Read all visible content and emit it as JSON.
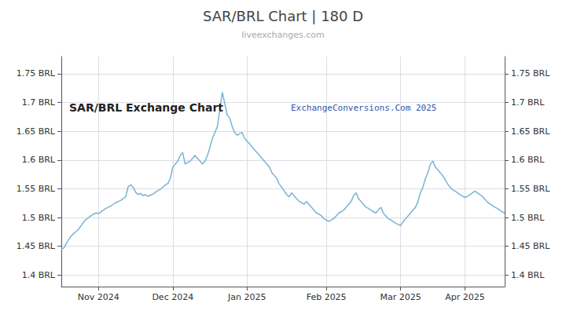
{
  "chart_data": {
    "type": "line",
    "title": "SAR/BRL Chart | 180 D",
    "subtitle": "liveexchanges.com",
    "annotations": [
      "SAR/BRL Exchange Chart",
      "ExchangeConversions.Com 2025"
    ],
    "color": "#7ab3d4",
    "grid": true,
    "xlim": [
      0,
      179
    ],
    "xticks": [
      {
        "value": 15,
        "label": "Nov 2024"
      },
      {
        "value": 45,
        "label": "Dec 2024"
      },
      {
        "value": 75,
        "label": "Jan 2025"
      },
      {
        "value": 107,
        "label": "Feb 2025"
      },
      {
        "value": 137,
        "label": "Mar 2025"
      },
      {
        "value": 163,
        "label": "Apr 2025"
      }
    ],
    "ylim": [
      1.38,
      1.78
    ],
    "yticks": [
      {
        "value": 1.4,
        "label": "1.4 BRL"
      },
      {
        "value": 1.45,
        "label": "1.45 BRL"
      },
      {
        "value": 1.5,
        "label": "1.5 BRL"
      },
      {
        "value": 1.55,
        "label": "1.55 BRL"
      },
      {
        "value": 1.6,
        "label": "1.6 BRL"
      },
      {
        "value": 1.65,
        "label": "1.65 BRL"
      },
      {
        "value": 1.7,
        "label": "1.7 BRL"
      },
      {
        "value": 1.75,
        "label": "1.75 BRL"
      }
    ],
    "y2lim": [
      1.38,
      1.78
    ],
    "y2ticks": [
      {
        "value": 1.4,
        "label": "1.4 BRL"
      },
      {
        "value": 1.45,
        "label": "1.45 BRL"
      },
      {
        "value": 1.5,
        "label": "1.5 BRL"
      },
      {
        "value": 1.55,
        "label": "1.55 BRL"
      },
      {
        "value": 1.6,
        "label": "1.6 BRL"
      },
      {
        "value": 1.65,
        "label": "1.65 BRL"
      },
      {
        "value": 1.7,
        "label": "1.7 BRL"
      },
      {
        "value": 1.75,
        "label": "1.75 BRL"
      }
    ],
    "x": [
      0,
      1,
      2,
      3,
      4,
      5,
      6,
      7,
      8,
      9,
      10,
      11,
      12,
      13,
      14,
      15,
      16,
      17,
      18,
      19,
      20,
      21,
      22,
      23,
      24,
      25,
      26,
      27,
      28,
      29,
      30,
      31,
      32,
      33,
      34,
      35,
      36,
      37,
      38,
      39,
      40,
      41,
      42,
      43,
      44,
      45,
      46,
      47,
      48,
      49,
      50,
      51,
      52,
      53,
      54,
      55,
      56,
      57,
      58,
      59,
      60,
      61,
      62,
      63,
      64,
      65,
      66,
      67,
      68,
      69,
      70,
      71,
      72,
      73,
      74,
      75,
      76,
      77,
      78,
      79,
      80,
      81,
      82,
      83,
      84,
      85,
      86,
      87,
      88,
      89,
      90,
      91,
      92,
      93,
      94,
      95,
      96,
      97,
      98,
      99,
      100,
      101,
      102,
      103,
      104,
      105,
      106,
      107,
      108,
      109,
      110,
      111,
      112,
      113,
      114,
      115,
      116,
      117,
      118,
      119,
      120,
      121,
      122,
      123,
      124,
      125,
      126,
      127,
      128,
      129,
      130,
      131,
      132,
      133,
      134,
      135,
      136,
      137,
      138,
      139,
      140,
      141,
      142,
      143,
      144,
      145,
      146,
      147,
      148,
      149,
      150,
      151,
      152,
      153,
      154,
      155,
      156,
      157,
      158,
      159,
      160,
      161,
      162,
      163,
      164,
      165,
      166,
      167,
      168,
      169,
      170,
      171,
      172,
      173,
      174,
      175,
      176,
      177,
      178,
      179
    ],
    "values": [
      1.445,
      1.447,
      1.455,
      1.462,
      1.468,
      1.472,
      1.476,
      1.48,
      1.486,
      1.492,
      1.497,
      1.5,
      1.503,
      1.506,
      1.508,
      1.507,
      1.51,
      1.513,
      1.516,
      1.518,
      1.52,
      1.523,
      1.526,
      1.528,
      1.53,
      1.533,
      1.536,
      1.554,
      1.557,
      1.553,
      1.544,
      1.54,
      1.542,
      1.538,
      1.54,
      1.537,
      1.539,
      1.541,
      1.544,
      1.547,
      1.549,
      1.553,
      1.557,
      1.559,
      1.568,
      1.588,
      1.593,
      1.598,
      1.608,
      1.613,
      1.593,
      1.596,
      1.598,
      1.603,
      1.608,
      1.603,
      1.598,
      1.593,
      1.598,
      1.608,
      1.622,
      1.638,
      1.648,
      1.658,
      1.688,
      1.718,
      1.698,
      1.678,
      1.673,
      1.658,
      1.648,
      1.643,
      1.646,
      1.648,
      1.638,
      1.633,
      1.628,
      1.623,
      1.618,
      1.613,
      1.608,
      1.603,
      1.598,
      1.593,
      1.588,
      1.578,
      1.573,
      1.568,
      1.558,
      1.553,
      1.546,
      1.54,
      1.536,
      1.543,
      1.538,
      1.533,
      1.528,
      1.526,
      1.523,
      1.528,
      1.523,
      1.518,
      1.513,
      1.508,
      1.506,
      1.503,
      1.498,
      1.496,
      1.493,
      1.496,
      1.498,
      1.503,
      1.508,
      1.51,
      1.513,
      1.518,
      1.523,
      1.528,
      1.538,
      1.543,
      1.533,
      1.528,
      1.523,
      1.518,
      1.516,
      1.513,
      1.51,
      1.508,
      1.513,
      1.518,
      1.508,
      1.503,
      1.498,
      1.496,
      1.493,
      1.49,
      1.488,
      1.486,
      1.493,
      1.498,
      1.503,
      1.508,
      1.513,
      1.518,
      1.528,
      1.543,
      1.553,
      1.568,
      1.578,
      1.593,
      1.598,
      1.588,
      1.583,
      1.578,
      1.573,
      1.566,
      1.558,
      1.553,
      1.548,
      1.546,
      1.543,
      1.54,
      1.537,
      1.535,
      1.537,
      1.54,
      1.543,
      1.546,
      1.543,
      1.54,
      1.537,
      1.532,
      1.527,
      1.524,
      1.521,
      1.518,
      1.516,
      1.513,
      1.51,
      1.508
    ]
  }
}
